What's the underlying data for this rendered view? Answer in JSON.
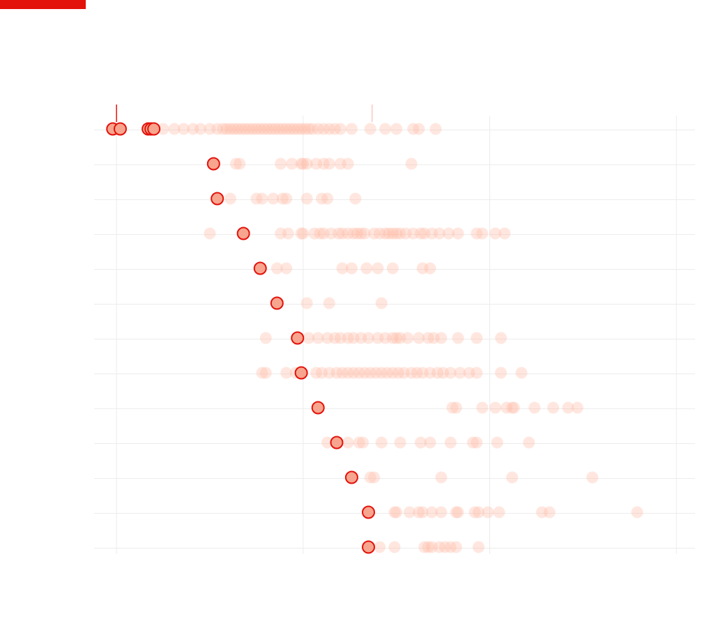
{
  "colors": {
    "accent": "#e3120b",
    "dot_fill": "#ffb4a0",
    "highlight_fill": "#f7a58e",
    "grid": "#ececec",
    "background": "#ffffff"
  },
  "chart_data": {
    "type": "scatter",
    "title": "",
    "subtitle": "",
    "xlabel": "",
    "ylabel": "",
    "x_ticks": [
      0,
      10,
      20,
      30
    ],
    "tick_labels_visible": false,
    "xlim": [
      -1.2,
      31.0
    ],
    "marker_lines": [
      0,
      13.7
    ],
    "grid": true,
    "legend": "none",
    "rows": [
      {
        "highlight": [
          -0.2,
          0.2,
          1.7,
          1.85,
          2.0
        ],
        "values": [
          2.5,
          3.1,
          3.6,
          4.1,
          4.5,
          5.0,
          5.4,
          5.7,
          5.9,
          6.1,
          6.3,
          6.5,
          6.7,
          6.9,
          7.1,
          7.3,
          7.5,
          7.7,
          7.9,
          8.1,
          8.3,
          8.5,
          8.7,
          8.9,
          9.1,
          9.3,
          9.5,
          9.7,
          9.9,
          10.1,
          10.3,
          10.5,
          10.8,
          11.1,
          11.4,
          11.7,
          12.0,
          12.6,
          13.6,
          14.4,
          15.0,
          15.9,
          16.2,
          17.1
        ]
      },
      {
        "highlight": [
          5.2
        ],
        "values": [
          6.4,
          6.6,
          8.8,
          9.4,
          9.9,
          10.0,
          10.2,
          10.7,
          11.1,
          11.4,
          12.0,
          12.4,
          15.8
        ]
      },
      {
        "highlight": [
          5.4
        ],
        "values": [
          6.1,
          7.5,
          7.8,
          8.4,
          8.9,
          9.1,
          10.2,
          11.0,
          11.3,
          12.8
        ]
      },
      {
        "highlight": [
          6.8
        ],
        "values": [
          5.0,
          8.8,
          9.2,
          9.9,
          10.0,
          10.6,
          10.9,
          11.1,
          11.5,
          11.9,
          12.1,
          12.4,
          12.7,
          12.9,
          13.1,
          13.3,
          13.8,
          14.1,
          14.4,
          14.6,
          14.8,
          15.0,
          15.2,
          15.5,
          15.9,
          16.3,
          16.5,
          16.9,
          17.3,
          17.8,
          18.3,
          19.3,
          19.6,
          20.3,
          20.8
        ]
      },
      {
        "highlight": [
          7.7
        ],
        "values": [
          8.6,
          9.1,
          12.1,
          12.6,
          13.4,
          14.0,
          14.8,
          16.4,
          16.8
        ]
      },
      {
        "highlight": [
          8.6
        ],
        "values": [
          10.2,
          11.4,
          14.2
        ]
      },
      {
        "highlight": [
          9.7
        ],
        "values": [
          8.0,
          10.3,
          10.8,
          11.3,
          11.7,
          12.0,
          12.4,
          12.7,
          13.1,
          13.5,
          14.0,
          14.4,
          14.8,
          15.0,
          15.2,
          15.6,
          16.2,
          16.7,
          17.0,
          17.4,
          18.3,
          19.3,
          20.6
        ]
      },
      {
        "highlight": [
          9.9
        ],
        "values": [
          7.8,
          8.0,
          9.1,
          9.6,
          10.7,
          11.0,
          11.4,
          11.8,
          12.1,
          12.4,
          12.7,
          13.0,
          13.3,
          13.6,
          13.9,
          14.2,
          14.5,
          14.8,
          15.1,
          15.4,
          15.8,
          16.1,
          16.4,
          16.8,
          17.2,
          17.5,
          17.9,
          18.4,
          18.9,
          19.3,
          20.6,
          21.7
        ]
      },
      {
        "highlight": [
          10.8
        ],
        "values": [
          18.0,
          18.2,
          19.6,
          20.3,
          20.9,
          21.2,
          21.3,
          22.4,
          23.4,
          24.2,
          24.7
        ]
      },
      {
        "highlight": [
          11.8
        ],
        "values": [
          11.3,
          12.4,
          13.0,
          13.2,
          14.2,
          15.2,
          16.3,
          16.8,
          17.9,
          19.1,
          19.3,
          20.4,
          22.1
        ]
      },
      {
        "highlight": [
          12.6
        ],
        "values": [
          13.6,
          13.8,
          17.4,
          21.2,
          25.5
        ]
      },
      {
        "highlight": [
          13.5
        ],
        "values": [
          14.9,
          15.0,
          15.7,
          16.2,
          16.4,
          16.9,
          17.4,
          18.2,
          18.3,
          19.2,
          19.4,
          19.9,
          20.5,
          22.8,
          23.2,
          27.9
        ]
      },
      {
        "highlight": [
          13.5
        ],
        "values": [
          14.1,
          14.9,
          16.5,
          16.7,
          16.9,
          17.3,
          17.6,
          17.9,
          18.2,
          19.4
        ]
      }
    ]
  }
}
